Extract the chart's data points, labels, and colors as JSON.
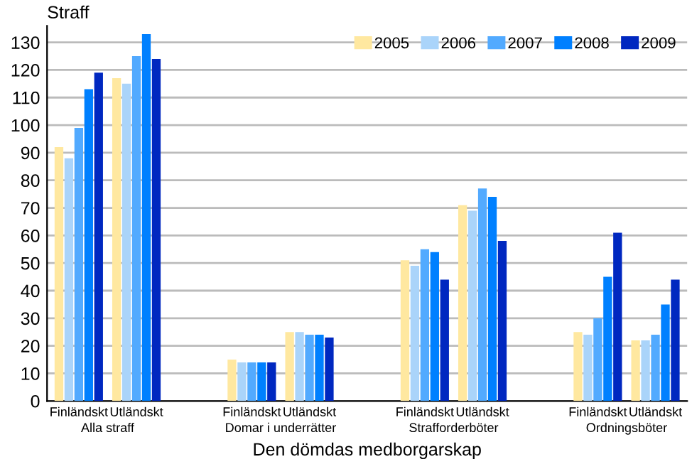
{
  "chart_data": {
    "type": "bar",
    "ylabel": "Straff",
    "xlabel": "Den dömdas medborgarskap",
    "categories": [
      "Finländskt",
      "Utländskt",
      null,
      "Finländskt",
      "Utländskt",
      null,
      "Finländskt",
      "Utländskt",
      null,
      "Finländskt",
      "Utländskt"
    ],
    "series": [
      {
        "name": "2005",
        "color": "#ffe8a0",
        "values": [
          92,
          117,
          null,
          15,
          25,
          null,
          51,
          71,
          null,
          25,
          22
        ]
      },
      {
        "name": "2006",
        "color": "#aad4fa",
        "values": [
          88,
          115,
          null,
          14,
          25,
          null,
          49,
          69,
          null,
          24,
          22
        ]
      },
      {
        "name": "2007",
        "color": "#52aaff",
        "values": [
          99,
          125,
          null,
          14,
          24,
          null,
          55,
          77,
          null,
          30,
          24
        ]
      },
      {
        "name": "2008",
        "color": "#0080ff",
        "values": [
          113,
          133,
          null,
          14,
          24,
          null,
          54,
          74,
          null,
          45,
          35
        ]
      },
      {
        "name": "2009",
        "color": "#0028c0",
        "values": [
          119,
          124,
          null,
          14,
          23,
          null,
          44,
          58,
          null,
          61,
          44
        ]
      }
    ],
    "annotations": [
      "Alla straff",
      "Domar i underrätter",
      "Strafforderböter",
      "Ordningsböter"
    ],
    "ylim": [
      0,
      136
    ],
    "yticks": [
      0,
      10,
      20,
      30,
      40,
      50,
      60,
      70,
      80,
      90,
      100,
      110,
      120,
      130
    ],
    "grid": "y",
    "legend": "top right"
  }
}
